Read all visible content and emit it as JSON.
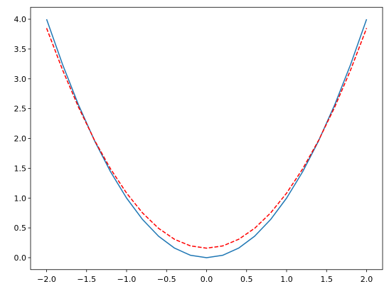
{
  "chart_data": {
    "type": "line",
    "x": [
      -2,
      -1.8,
      -1.6,
      -1.4,
      -1.2,
      -1,
      -0.8,
      -0.6,
      -0.4,
      -0.2,
      0,
      0.2,
      0.4,
      0.6,
      0.8,
      1,
      1.2,
      1.4,
      1.6,
      1.8,
      2
    ],
    "series": [
      {
        "color": "#1f77b4",
        "linestyle": "solid",
        "values": [
          4,
          3.24,
          2.56,
          1.96,
          1.44,
          1,
          0.64,
          0.36,
          0.16,
          0.04,
          0,
          0.04,
          0.16,
          0.36,
          0.64,
          1,
          1.44,
          1.96,
          2.56,
          3.24,
          4
        ]
      },
      {
        "color": "#ff0000",
        "linestyle": "dashed",
        "values": [
          3.85,
          3.149,
          2.522,
          1.968,
          1.488,
          1.083,
          0.75,
          0.492,
          0.308,
          0.197,
          0.16,
          0.197,
          0.308,
          0.492,
          0.75,
          1.083,
          1.488,
          1.968,
          2.522,
          3.149,
          3.85
        ]
      }
    ],
    "xlim": [
      -2.2,
      2.2
    ],
    "ylim": [
      -0.2,
      4.2
    ],
    "xticks": [
      {
        "value": -2,
        "label": "−2.0"
      },
      {
        "value": -1.5,
        "label": "−1.5"
      },
      {
        "value": -1,
        "label": "−1.0"
      },
      {
        "value": -0.5,
        "label": "−0.5"
      },
      {
        "value": 0,
        "label": "0.0"
      },
      {
        "value": 0.5,
        "label": "0.5"
      },
      {
        "value": 1,
        "label": "1.0"
      },
      {
        "value": 1.5,
        "label": "1.5"
      },
      {
        "value": 2,
        "label": "2.0"
      }
    ],
    "yticks": [
      {
        "value": 0,
        "label": "0.0"
      },
      {
        "value": 0.5,
        "label": "0.5"
      },
      {
        "value": 1,
        "label": "1.0"
      },
      {
        "value": 1.5,
        "label": "1.5"
      },
      {
        "value": 2,
        "label": "2.0"
      },
      {
        "value": 2.5,
        "label": "2.5"
      },
      {
        "value": 3,
        "label": "3.0"
      },
      {
        "value": 3.5,
        "label": "3.5"
      },
      {
        "value": 4,
        "label": "4.0"
      }
    ],
    "grid": false
  }
}
